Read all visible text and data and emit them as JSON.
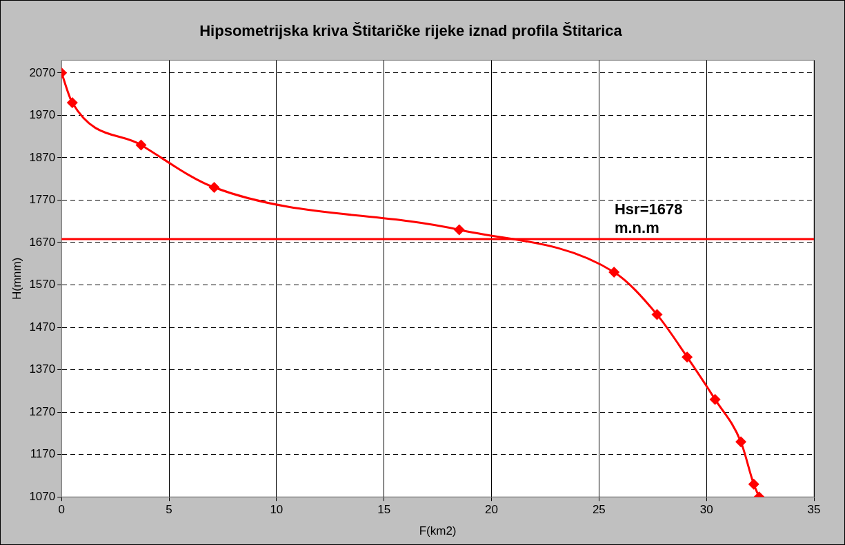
{
  "chart_data": {
    "type": "line",
    "title": "Hipsometrijska kriva Štitaričke rijeke iznad profila Štitarica",
    "xlabel": "F(km2)",
    "ylabel": "H(mnm)",
    "x": [
      0,
      0.5,
      3.7,
      7.1,
      18.5,
      25.7,
      27.7,
      29.1,
      30.4,
      31.6,
      32.2,
      32.45
    ],
    "series": [
      {
        "color": "#ff0000",
        "values": [
          2070,
          2000,
          1900,
          1800,
          1700,
          1600,
          1500,
          1400,
          1300,
          1200,
          1100,
          1070
        ]
      }
    ],
    "xlim": [
      0,
      35
    ],
    "xticks": [
      0,
      5,
      10,
      15,
      20,
      25,
      30,
      35
    ],
    "ylim": [
      1070,
      2100
    ],
    "yticks": [
      1070,
      1170,
      1270,
      1370,
      1470,
      1570,
      1670,
      1770,
      1870,
      1970,
      2070
    ],
    "ref_lines": [
      {
        "axis": "y",
        "value": 1678,
        "label": "Hsr=1678 m.n.m",
        "color": "#ff0000",
        "line_style": "solid"
      }
    ],
    "grid": true,
    "marker": "diamond",
    "line_style": "solid",
    "legend": false
  }
}
